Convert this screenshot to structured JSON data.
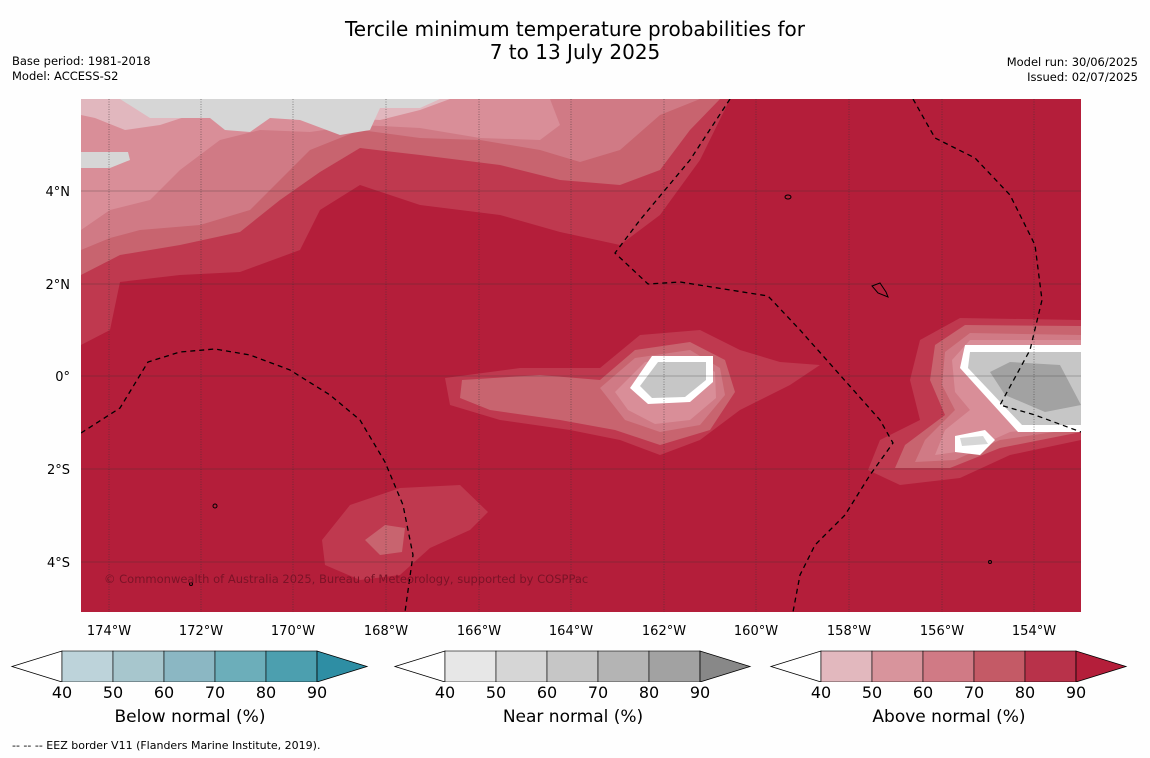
{
  "header": {
    "title_line1": "Tercile minimum temperature probabilities for",
    "title_line2": "7 to 13 July 2025",
    "base_period": "Base period: 1981-2018",
    "model": "Model: ACCESS-S2",
    "model_run": "Model run: 30/06/2025",
    "issued": "Issued: 02/07/2025"
  },
  "map": {
    "lon_labels": [
      "174°W",
      "172°W",
      "170°W",
      "168°W",
      "166°W",
      "164°W",
      "162°W",
      "160°W",
      "158°W",
      "156°W",
      "154°W"
    ],
    "lat_labels": [
      "4°N",
      "2°N",
      "0°",
      "2°S",
      "4°S"
    ],
    "copyright": "© Commonwealth of Australia 2025, Bureau of Meteorology, supported by COSPPac",
    "colors": {
      "background_above90": "#b41e3a",
      "above80": "#bf394f",
      "above70": "#c8646f",
      "above60": "#d07a85",
      "above50": "#d98e98",
      "above40": "#e1b7be",
      "near40": "#e6e6e6",
      "near50": "#d6d6d6",
      "near60": "#c6c6c6",
      "near70": "#b4b4b4",
      "near80": "#a2a2a2"
    }
  },
  "colorbars": [
    {
      "label": "Below normal (%)",
      "ticks": [
        "40",
        "50",
        "60",
        "70",
        "80",
        "90"
      ],
      "colors": [
        "#bdd3da",
        "#a7c6cd",
        "#8bb7c3",
        "#6caeba",
        "#4c9faf",
        "#2e8ea4"
      ]
    },
    {
      "label": "Near normal (%)",
      "ticks": [
        "40",
        "50",
        "60",
        "70",
        "80",
        "90"
      ],
      "colors": [
        "#e7e7e7",
        "#d6d6d6",
        "#c6c6c6",
        "#b4b4b4",
        "#a2a2a2",
        "#888888"
      ]
    },
    {
      "label": "Above normal (%)",
      "ticks": [
        "40",
        "50",
        "60",
        "70",
        "80",
        "90"
      ],
      "colors": [
        "#e2b8be",
        "#d8949c",
        "#d07a85",
        "#c45a66",
        "#b8324a",
        "#b41e3a"
      ]
    }
  ],
  "footnote": "-- -- -- EEZ border V11 (Flanders Marine Institute, 2019)."
}
